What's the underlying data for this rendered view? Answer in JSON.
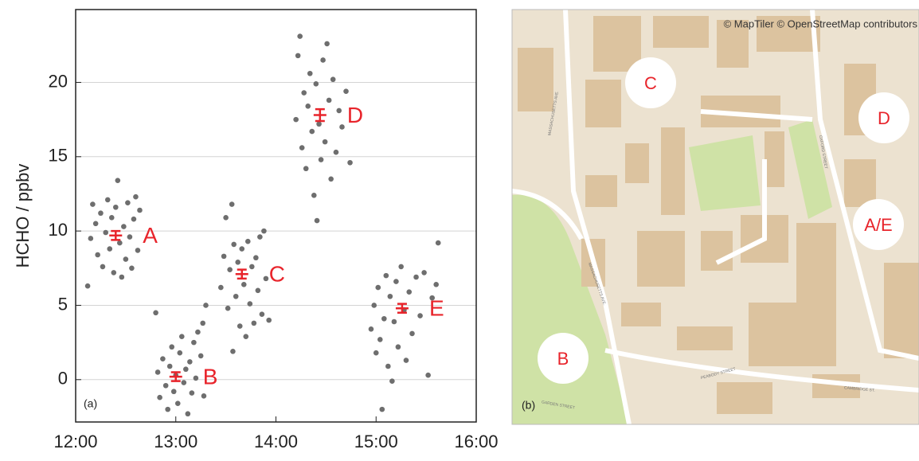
{
  "chart_data": {
    "type": "scatter",
    "y_label": "HCHO / ppbv",
    "panel_label": "(a)",
    "xlim": [
      12,
      16
    ],
    "xticks": [
      {
        "value": 12,
        "label": "12:00"
      },
      {
        "value": 13,
        "label": "13:00"
      },
      {
        "value": 14,
        "label": "14:00"
      },
      {
        "value": 15,
        "label": "15:00"
      },
      {
        "value": 16,
        "label": "16:00"
      }
    ],
    "ylim": [
      -2.85,
      24.9
    ],
    "yticks": [
      0,
      5,
      10,
      15,
      20
    ],
    "grid": true,
    "series": [
      {
        "color": "#6e6e6e",
        "x": [
          12.12,
          12.15,
          12.17,
          12.2,
          12.22,
          12.25,
          12.27,
          12.3,
          12.32,
          12.34,
          12.36,
          12.38,
          12.4,
          12.42,
          12.44,
          12.46,
          12.48,
          12.5,
          12.52,
          12.54,
          12.56,
          12.58,
          12.6,
          12.62,
          12.64,
          12.8,
          12.82,
          12.84,
          12.87,
          12.9,
          12.92,
          12.94,
          12.96,
          12.98,
          13.0,
          13.02,
          13.04,
          13.06,
          13.08,
          13.1,
          13.12,
          13.14,
          13.16,
          13.18,
          13.2,
          13.22,
          13.25,
          13.27,
          13.3,
          13.28,
          13.45,
          13.48,
          13.5,
          13.52,
          13.54,
          13.56,
          13.57,
          13.58,
          13.6,
          13.62,
          13.64,
          13.66,
          13.68,
          13.7,
          13.72,
          13.74,
          13.76,
          13.78,
          13.8,
          13.82,
          13.84,
          13.86,
          13.88,
          13.9,
          13.93,
          14.2,
          14.22,
          14.24,
          14.26,
          14.28,
          14.3,
          14.32,
          14.34,
          14.36,
          14.38,
          14.4,
          14.41,
          14.43,
          14.45,
          14.47,
          14.49,
          14.51,
          14.53,
          14.55,
          14.57,
          14.6,
          14.63,
          14.66,
          14.7,
          14.74,
          14.95,
          14.98,
          15.0,
          15.02,
          15.04,
          15.06,
          15.08,
          15.1,
          15.12,
          15.14,
          15.16,
          15.18,
          15.2,
          15.22,
          15.25,
          15.28,
          15.3,
          15.33,
          15.36,
          15.4,
          15.44,
          15.48,
          15.52,
          15.56,
          15.62,
          15.6
        ],
        "values": [
          6.3,
          9.5,
          11.8,
          10.5,
          8.4,
          11.2,
          7.6,
          9.9,
          12.1,
          8.8,
          10.9,
          7.2,
          11.6,
          13.4,
          9.2,
          6.9,
          10.3,
          8.1,
          11.9,
          9.6,
          7.5,
          10.8,
          12.3,
          8.7,
          11.4,
          4.5,
          0.5,
          -1.2,
          1.4,
          -0.4,
          -2.0,
          0.9,
          2.2,
          -0.8,
          0.3,
          -1.6,
          1.8,
          2.9,
          -0.2,
          0.7,
          -2.3,
          1.2,
          -0.9,
          2.5,
          0.1,
          3.2,
          1.6,
          3.8,
          5.0,
          -1.1,
          6.2,
          8.3,
          10.9,
          4.8,
          7.4,
          11.8,
          1.9,
          9.1,
          5.6,
          7.9,
          3.6,
          8.8,
          6.4,
          2.9,
          9.3,
          5.1,
          7.6,
          3.8,
          8.2,
          6.0,
          9.6,
          4.4,
          10.0,
          6.8,
          4.0,
          17.5,
          21.8,
          23.1,
          15.6,
          19.3,
          14.2,
          18.4,
          20.6,
          16.7,
          12.4,
          19.9,
          10.7,
          17.2,
          14.8,
          21.5,
          16.0,
          22.6,
          18.8,
          13.5,
          20.2,
          15.3,
          18.1,
          17.0,
          19.4,
          14.6,
          3.4,
          5.0,
          1.8,
          6.2,
          2.7,
          -2.0,
          4.1,
          7.0,
          0.9,
          5.6,
          -0.1,
          3.9,
          6.6,
          2.2,
          7.6,
          4.7,
          1.3,
          5.9,
          3.1,
          6.9,
          4.3,
          7.2,
          0.3,
          5.5,
          9.2,
          6.4
        ]
      }
    ],
    "summary": {
      "color": "#e8242b",
      "labels": [
        "A",
        "B",
        "C",
        "D",
        "E"
      ],
      "x": [
        12.4,
        13.0,
        13.66,
        14.44,
        15.26
      ],
      "values": [
        9.7,
        0.2,
        7.1,
        17.8,
        4.8
      ],
      "errors": [
        0.3,
        0.3,
        0.3,
        0.4,
        0.3
      ]
    }
  },
  "map": {
    "attribution": "© MapTiler © OpenStreetMap contributors",
    "panel_label": "(b)",
    "markers": [
      "C",
      "D",
      "A/E",
      "B"
    ],
    "streets": [
      "MASSACHUSETTS AVE.",
      "MASSACHUSETTS AVE.",
      "OXFORD STREET",
      "PEABODY STREET",
      "CAMBRIDGE ST.",
      "GARDEN STREET"
    ]
  }
}
